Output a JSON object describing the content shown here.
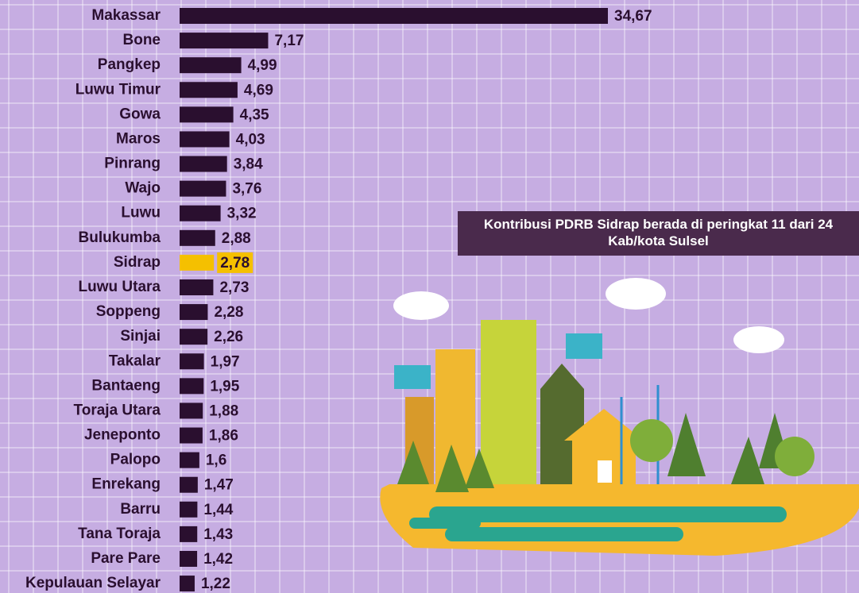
{
  "chart_data": {
    "type": "bar",
    "orientation": "horizontal",
    "categories": [
      "Makassar",
      "Bone",
      "Pangkep",
      "Luwu Timur",
      "Gowa",
      "Maros",
      "Pinrang",
      "Wajo",
      "Luwu",
      "Bulukumba",
      "Sidrap",
      "Luwu Utara",
      "Soppeng",
      "Sinjai",
      "Takalar",
      "Bantaeng",
      "Toraja Utara",
      "Jeneponto",
      "Palopo",
      "Enrekang",
      "Barru",
      "Tana Toraja",
      "Pare Pare",
      "Kepulauan Selayar"
    ],
    "values": [
      34.67,
      7.17,
      4.99,
      4.69,
      4.35,
      4.03,
      3.84,
      3.76,
      3.32,
      2.88,
      2.78,
      2.73,
      2.28,
      2.26,
      1.97,
      1.95,
      1.88,
      1.86,
      1.6,
      1.47,
      1.44,
      1.43,
      1.42,
      1.22
    ],
    "value_labels": [
      "34,67",
      "7,17",
      "4,99",
      "4,69",
      "4,35",
      "4,03",
      "3,84",
      "3,76",
      "3,32",
      "2,88",
      "2,78",
      "2,73",
      "2,28",
      "2,26",
      "1,97",
      "1,95",
      "1,88",
      "1,86",
      "1,6",
      "1,47",
      "1,44",
      "1,43",
      "1,42",
      "1,22"
    ],
    "colors": [
      "#2a0f2f",
      "#2a0f2f",
      "#2a0f2f",
      "#2a0f2f",
      "#2a0f2f",
      "#2a0f2f",
      "#2a0f2f",
      "#2a0f2f",
      "#2a0f2f",
      "#2a0f2f",
      "#f5c000",
      "#2a0f2f",
      "#2a0f2f",
      "#2a0f2f",
      "#2a0f2f",
      "#2a0f2f",
      "#2a0f2f",
      "#2a0f2f",
      "#2a0f2f",
      "#2a0f2f",
      "#2a0f2f",
      "#2a0f2f",
      "#2a0f2f",
      "#2a0f2f"
    ],
    "annotation": "Kontribusi PDRB Sidrap berada di peringkat 11 dari 24 Kab/kota Sulsel"
  }
}
